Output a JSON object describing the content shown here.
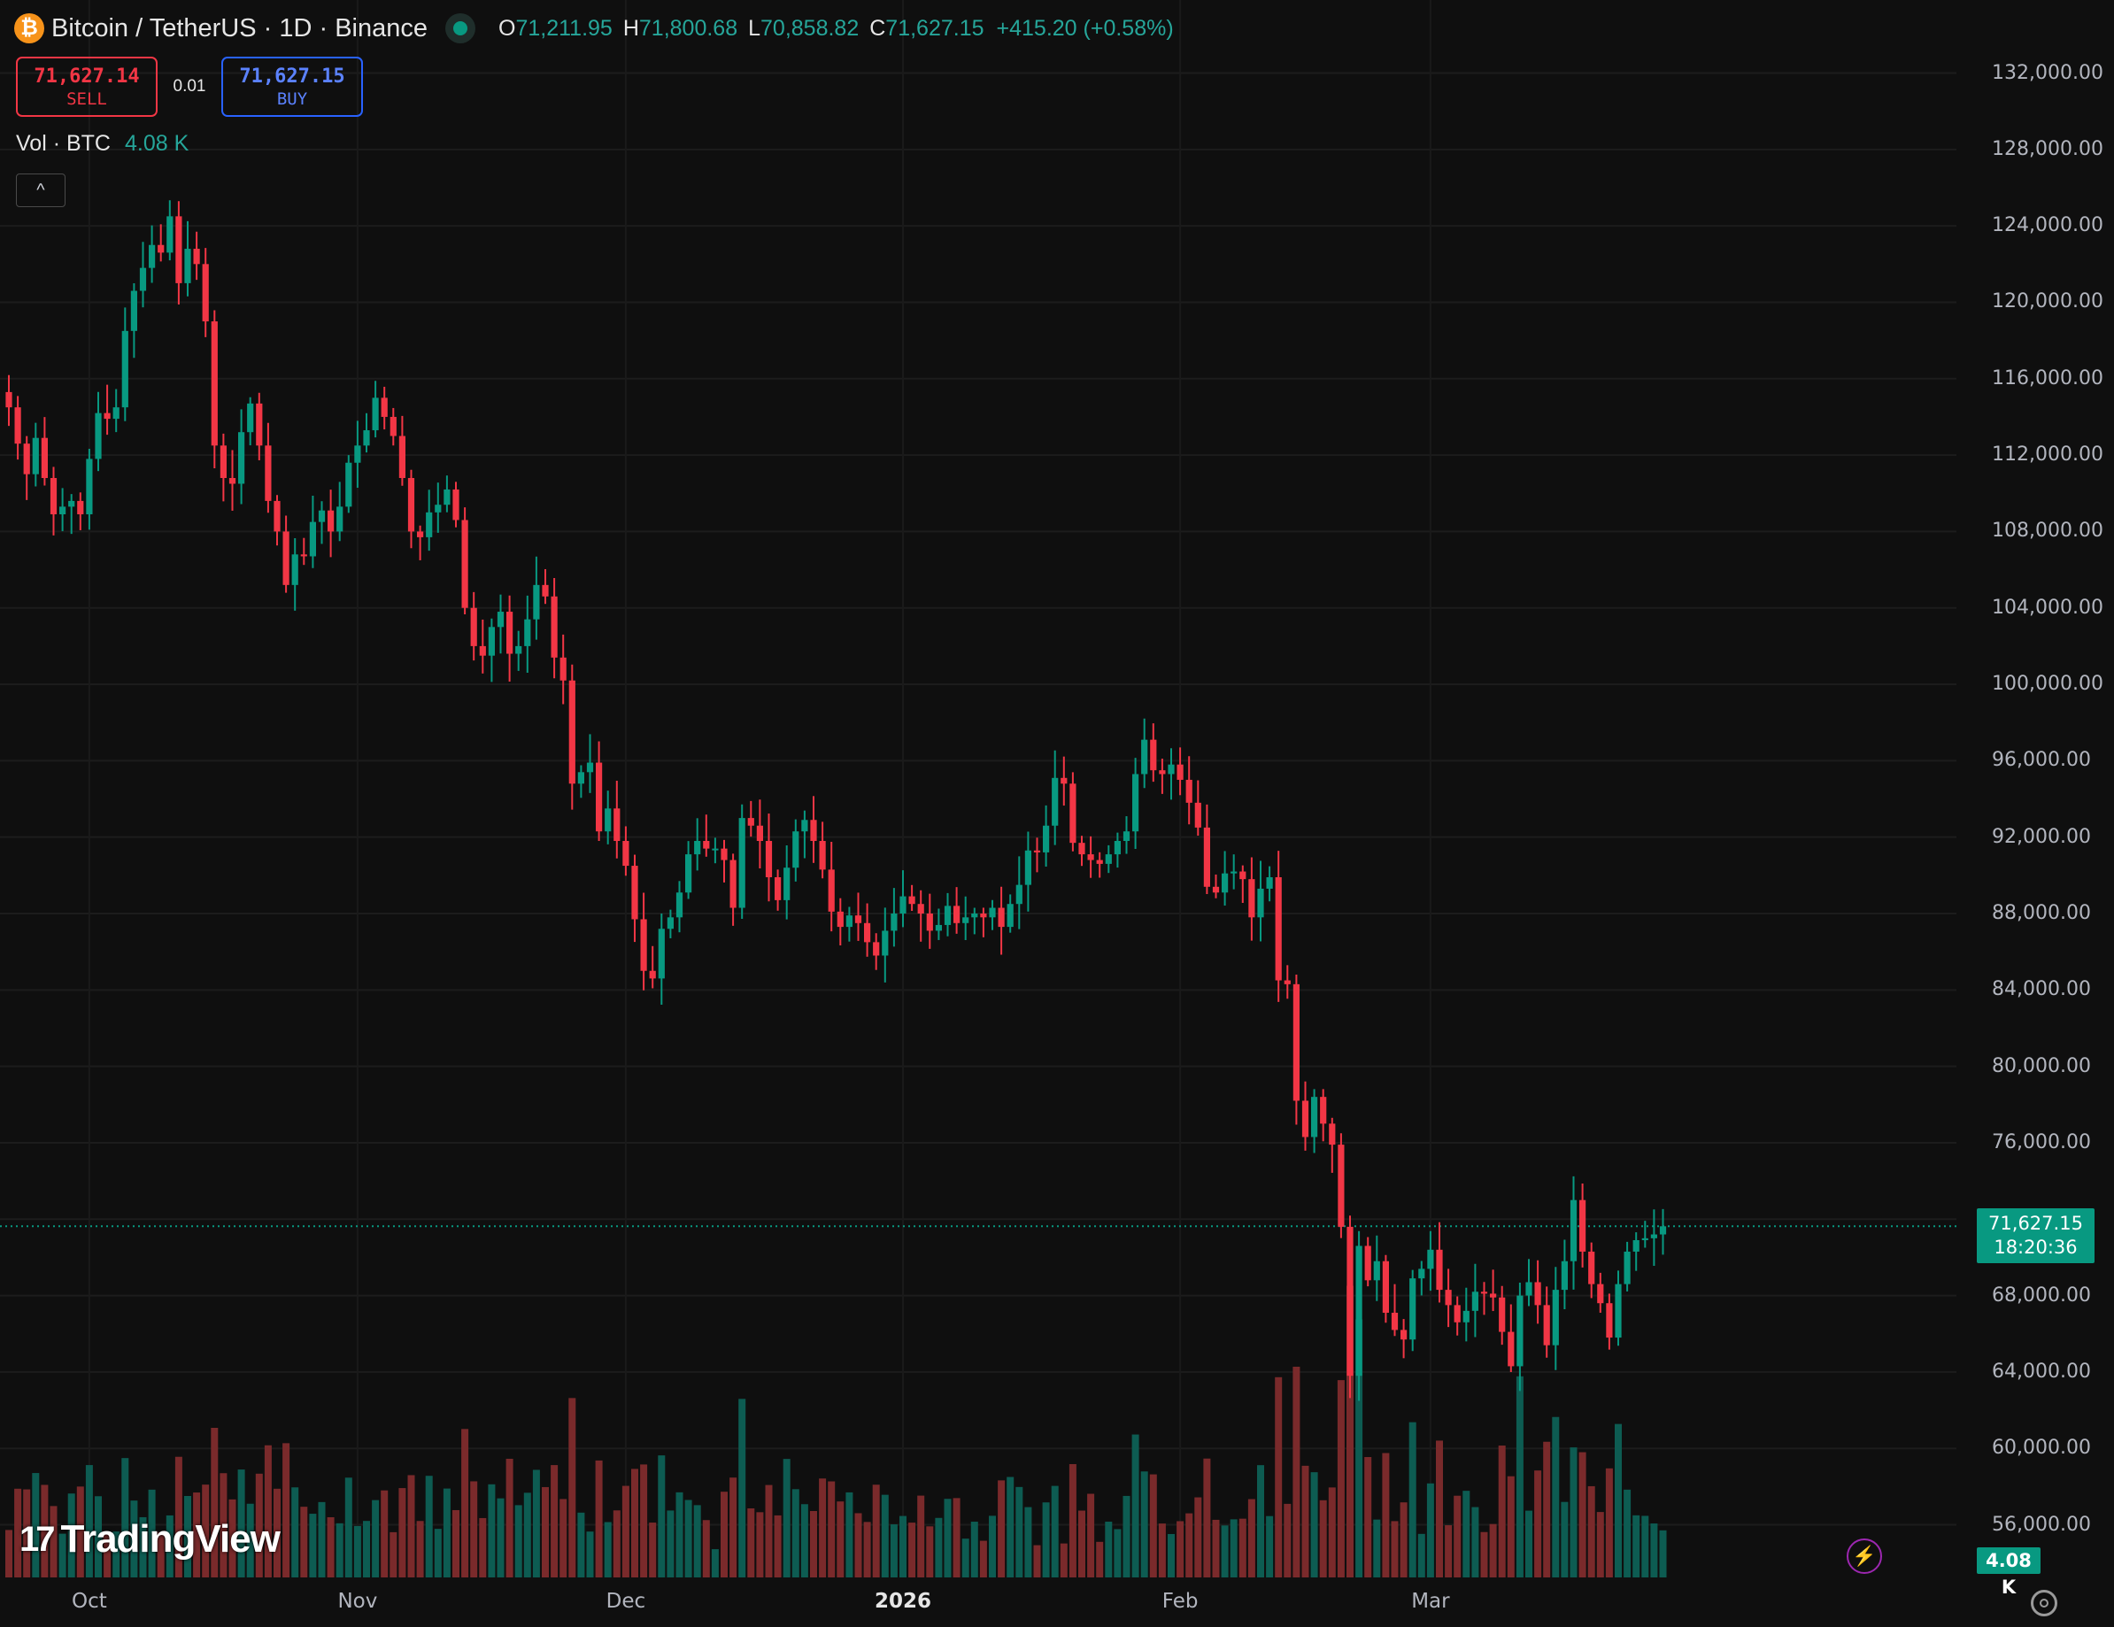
{
  "legend": {
    "coin_icon": "bitcoin-icon",
    "coin_glyph": "₿",
    "symbol": "Bitcoin / TetherUS · 1D · Binance",
    "o_label": "O",
    "open": "71,211.95",
    "h_label": "H",
    "high": "71,800.68",
    "l_label": "L",
    "low": "70,858.82",
    "c_label": "C",
    "close": "71,627.15",
    "change": "+415.20 (+0.58%)"
  },
  "trade": {
    "sell_price": "71,627.14",
    "sell_label": "SELL",
    "qty": "0.01",
    "buy_price": "71,627.15",
    "buy_label": "BUY"
  },
  "volume_legend": {
    "label": "Vol · BTC",
    "value": "4.08 K"
  },
  "collapse_glyph": "^",
  "brand": {
    "mark": "17",
    "name": "TradingView"
  },
  "last_price": {
    "price": "71,627.15",
    "countdown": "18:20:36"
  },
  "volume_badge": "4.08 K",
  "colors": {
    "up": "#089981",
    "down": "#f23645",
    "up_vol": "#0d5c52",
    "down_vol": "#7a2a2b",
    "background": "#0f0f0f"
  },
  "icons": [
    "bitcoin-icon",
    "live-dot-icon",
    "chevron-up-icon",
    "lightning-icon",
    "settings-icon"
  ],
  "chart_data": {
    "type": "candlestick",
    "interval": "1D",
    "y_axis": {
      "ticks": [
        56000,
        60000,
        64000,
        68000,
        72000,
        76000,
        80000,
        84000,
        88000,
        92000,
        96000,
        100000,
        104000,
        108000,
        112000,
        116000,
        120000,
        124000,
        128000,
        132000
      ],
      "tick_labels": [
        "56,000.00",
        "60,000.00",
        "64,000.00",
        "68,000.00",
        "72,000.00",
        "76,000.00",
        "80,000.00",
        "84,000.00",
        "88,000.00",
        "92,000.00",
        "96,000.00",
        "100,000.00",
        "104,000.00",
        "108,000.00",
        "112,000.00",
        "116,000.00",
        "120,000.00",
        "124,000.00",
        "128,000.00",
        "132,000.00"
      ],
      "range": [
        53800,
        133600
      ]
    },
    "x_axis": {
      "labels": [
        "Oct",
        "Nov",
        "Dec",
        "2026",
        "Feb",
        "Mar"
      ],
      "bold": [
        false,
        false,
        false,
        true,
        false,
        false
      ],
      "label_day_index": [
        9,
        39,
        69,
        100,
        131,
        159
      ]
    },
    "last_price": 71627.15,
    "closes": [
      114500,
      112600,
      111000,
      112900,
      110800,
      108900,
      109300,
      109600,
      108900,
      111800,
      114200,
      113900,
      114500,
      118500,
      120600,
      121800,
      123000,
      122600,
      124500,
      121000,
      122800,
      122000,
      119000,
      112500,
      110800,
      110500,
      113200,
      114700,
      112500,
      109600,
      108000,
      105200,
      106800,
      106700,
      108500,
      109100,
      108000,
      109300,
      111600,
      112500,
      113300,
      115000,
      114000,
      113000,
      110800,
      108000,
      107700,
      109000,
      109400,
      110200,
      108600,
      104000,
      102000,
      101500,
      103000,
      103800,
      101600,
      102000,
      103400,
      105200,
      104600,
      101400,
      100200,
      94800,
      95400,
      95900,
      92300,
      93500,
      91800,
      90500,
      87700,
      85000,
      84600,
      87200,
      87800,
      89100,
      91100,
      91800,
      91400,
      91400,
      90800,
      88300,
      93000,
      92600,
      91800,
      89900,
      88700,
      90400,
      92300,
      92900,
      91800,
      90300,
      88100,
      87300,
      87900,
      87500,
      86500,
      85800,
      87100,
      88000,
      88900,
      88500,
      88000,
      87100,
      87400,
      88400,
      87500,
      87800,
      88000,
      87800,
      88300,
      87300,
      88500,
      89500,
      91300,
      91200,
      92600,
      95100,
      94800,
      91700,
      91100,
      90800,
      90600,
      91100,
      91800,
      92300,
      95300,
      97100,
      95500,
      95300,
      95800,
      95000,
      93800,
      92500,
      89400,
      89100,
      90100,
      90200,
      89800,
      87800,
      89300,
      89900,
      84500,
      84300,
      78200,
      76300,
      78400,
      77000,
      75900,
      71600,
      63800,
      70600,
      68800,
      69800,
      67100,
      66200,
      65700,
      68900,
      69400,
      70400,
      68300,
      67500,
      66600,
      67200,
      68200,
      68100,
      67900,
      66100,
      64300,
      68000,
      68700,
      67500,
      65400,
      68300,
      69800,
      73000,
      70300,
      68600,
      67600,
      65800,
      68600,
      70300,
      70900,
      71000,
      71200,
      71627
    ],
    "volume_labels": {
      "last": "4.08 K"
    }
  }
}
